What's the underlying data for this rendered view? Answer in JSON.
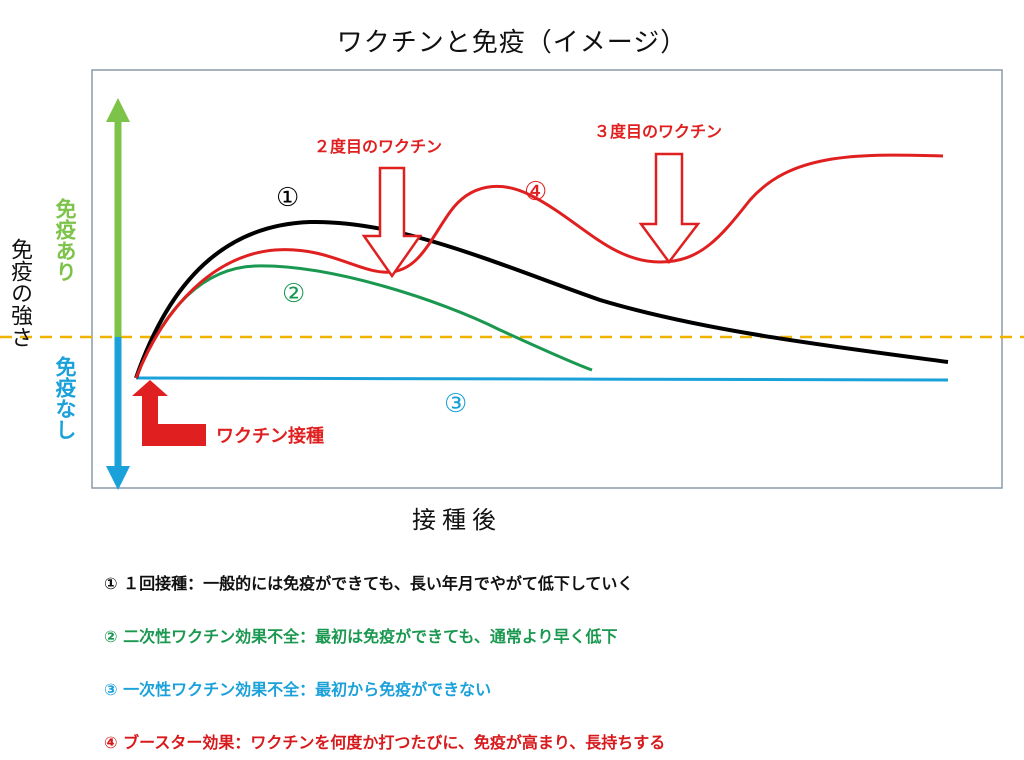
{
  "title": "ワクチンと免疫（イメージ）",
  "y_axis": {
    "label": "免疫の強さ",
    "top_label": "免疫あり",
    "bottom_label": "免疫なし"
  },
  "x_axis": {
    "label": "接種後"
  },
  "annotations": {
    "vaccination": "ワクチン接種",
    "second_dose": "２度目のワクチン",
    "third_dose": "３度目のワクチン"
  },
  "curve_labels": [
    "①",
    "②",
    "③",
    "④"
  ],
  "legend": [
    {
      "text": "① １回接種：一般的には免疫ができても、長い年月でやがて低下していく",
      "color": "#111111"
    },
    {
      "text": "② 二次性ワクチン効果不全：最初は免疫ができても、通常より早く低下",
      "color": "#1A9850"
    },
    {
      "text": "③ 一次性ワクチン効果不全：最初から免疫ができない",
      "color": "#1BA1DA"
    },
    {
      "text": "④ ブースター効果：ワクチンを何度か打つたびに、免疫が高まり、長持ちする",
      "color": "#D7191C"
    }
  ],
  "colors": {
    "curve1": "#000000",
    "curve2": "#1A9850",
    "curve3": "#1BA1DA",
    "curve4": "#E02020",
    "threshold": "#F0B400",
    "axis_up": "#7DC34A",
    "axis_down": "#1BA1DA",
    "arrow": "#E02020"
  }
}
